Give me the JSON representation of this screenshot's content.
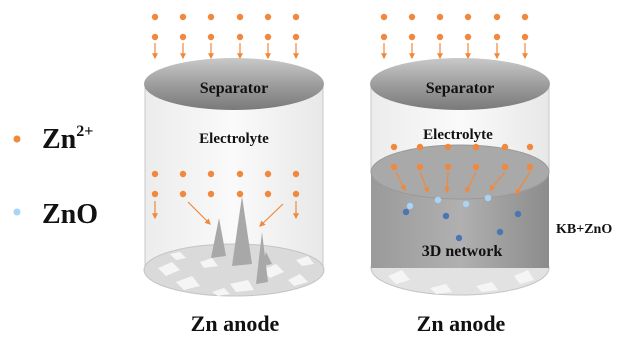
{
  "legend": {
    "zn_ion": {
      "text": "Zn",
      "superscript": "2+",
      "color": "#f0883e"
    },
    "zno": {
      "text": "ZnO",
      "color": "#a9d4f5"
    }
  },
  "left_cell": {
    "separator": "Separator",
    "electrolyte": "Electrolyte",
    "caption": "Zn anode"
  },
  "right_cell": {
    "separator": "Separator",
    "electrolyte": "Electrolyte",
    "network": "3D network",
    "side_label": "KB+ZnO",
    "caption": "Zn anode"
  },
  "colors": {
    "ion": "#f0883e",
    "arrow": "#f0883e",
    "deposit_dot": "#4a77b4",
    "separator": "#8e8e8e",
    "network_body": "#8f8f8f",
    "cylinder_edge": "#bdbdbd"
  }
}
